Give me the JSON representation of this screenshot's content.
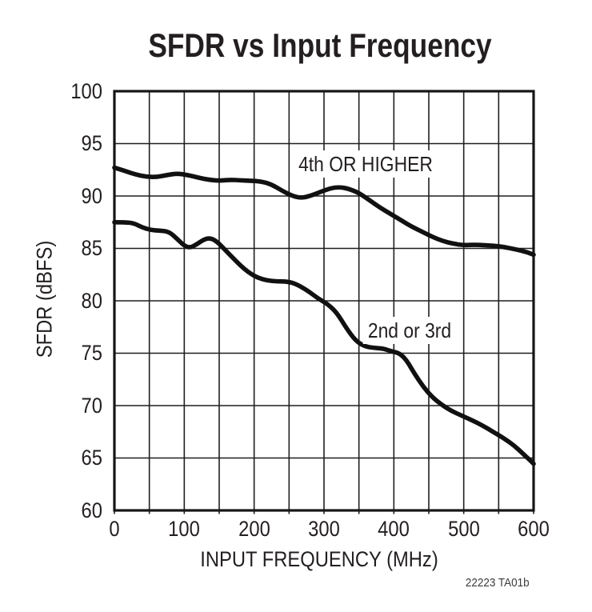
{
  "chart_data": {
    "type": "line",
    "title": "SFDR vs Input Frequency",
    "xlabel": "INPUT FREQUENCY (MHz)",
    "ylabel": "SFDR (dBFS)",
    "xlim": [
      0,
      600
    ],
    "ylim": [
      60,
      100
    ],
    "x_tick_labels": [
      "0",
      "100",
      "200",
      "300",
      "400",
      "500",
      "600"
    ],
    "x_tick_values": [
      0,
      100,
      200,
      300,
      400,
      500,
      600
    ],
    "x_grid_step": 50,
    "y_tick_labels": [
      "100",
      "95",
      "90",
      "85",
      "80",
      "75",
      "70",
      "65",
      "60"
    ],
    "y_tick_values": [
      100,
      95,
      90,
      85,
      80,
      75,
      70,
      65,
      60
    ],
    "y_grid_step": 5,
    "grid": "full grid, solid black lines",
    "legend_position": "inline-labels",
    "footnote": "22223 TA01b",
    "line_color": "#111111",
    "series": [
      {
        "name": "4th OR HIGHER",
        "points_mhz_dbfs": [
          [
            0,
            92.7
          ],
          [
            15,
            92.4
          ],
          [
            30,
            92.05
          ],
          [
            45,
            91.85
          ],
          [
            60,
            91.8
          ],
          [
            75,
            92.0
          ],
          [
            90,
            92.15
          ],
          [
            105,
            92.0
          ],
          [
            120,
            91.75
          ],
          [
            135,
            91.55
          ],
          [
            150,
            91.45
          ],
          [
            165,
            91.55
          ],
          [
            180,
            91.5
          ],
          [
            195,
            91.45
          ],
          [
            210,
            91.4
          ],
          [
            225,
            91.1
          ],
          [
            240,
            90.5
          ],
          [
            255,
            90.0
          ],
          [
            268,
            89.8
          ],
          [
            282,
            90.05
          ],
          [
            295,
            90.4
          ],
          [
            310,
            90.75
          ],
          [
            322,
            90.85
          ],
          [
            335,
            90.7
          ],
          [
            350,
            90.3
          ],
          [
            365,
            89.6
          ],
          [
            380,
            88.9
          ],
          [
            395,
            88.3
          ],
          [
            410,
            87.7
          ],
          [
            425,
            87.1
          ],
          [
            440,
            86.6
          ],
          [
            455,
            86.1
          ],
          [
            470,
            85.7
          ],
          [
            485,
            85.45
          ],
          [
            500,
            85.3
          ],
          [
            515,
            85.35
          ],
          [
            530,
            85.3
          ],
          [
            545,
            85.25
          ],
          [
            560,
            85.1
          ],
          [
            575,
            84.9
          ],
          [
            590,
            84.65
          ],
          [
            600,
            84.4
          ]
        ]
      },
      {
        "name": "2nd or 3rd",
        "points_mhz_dbfs": [
          [
            0,
            87.5
          ],
          [
            15,
            87.5
          ],
          [
            28,
            87.4
          ],
          [
            40,
            87.0
          ],
          [
            52,
            86.75
          ],
          [
            65,
            86.7
          ],
          [
            78,
            86.6
          ],
          [
            90,
            85.9
          ],
          [
            100,
            85.25
          ],
          [
            108,
            85.05
          ],
          [
            118,
            85.4
          ],
          [
            128,
            85.85
          ],
          [
            136,
            86.0
          ],
          [
            145,
            85.75
          ],
          [
            155,
            85.1
          ],
          [
            168,
            84.2
          ],
          [
            180,
            83.4
          ],
          [
            192,
            82.7
          ],
          [
            205,
            82.2
          ],
          [
            218,
            81.95
          ],
          [
            232,
            81.85
          ],
          [
            248,
            81.85
          ],
          [
            262,
            81.55
          ],
          [
            278,
            80.9
          ],
          [
            292,
            80.2
          ],
          [
            305,
            79.7
          ],
          [
            318,
            78.9
          ],
          [
            332,
            77.4
          ],
          [
            345,
            76.2
          ],
          [
            358,
            75.65
          ],
          [
            372,
            75.5
          ],
          [
            385,
            75.45
          ],
          [
            398,
            75.15
          ],
          [
            408,
            75.0
          ],
          [
            418,
            74.35
          ],
          [
            430,
            73.0
          ],
          [
            442,
            71.8
          ],
          [
            455,
            70.8
          ],
          [
            468,
            70.1
          ],
          [
            482,
            69.5
          ],
          [
            497,
            69.05
          ],
          [
            512,
            68.6
          ],
          [
            527,
            68.1
          ],
          [
            542,
            67.5
          ],
          [
            557,
            66.9
          ],
          [
            572,
            66.2
          ],
          [
            585,
            65.4
          ],
          [
            594,
            64.85
          ],
          [
            600,
            64.45
          ]
        ]
      }
    ]
  }
}
